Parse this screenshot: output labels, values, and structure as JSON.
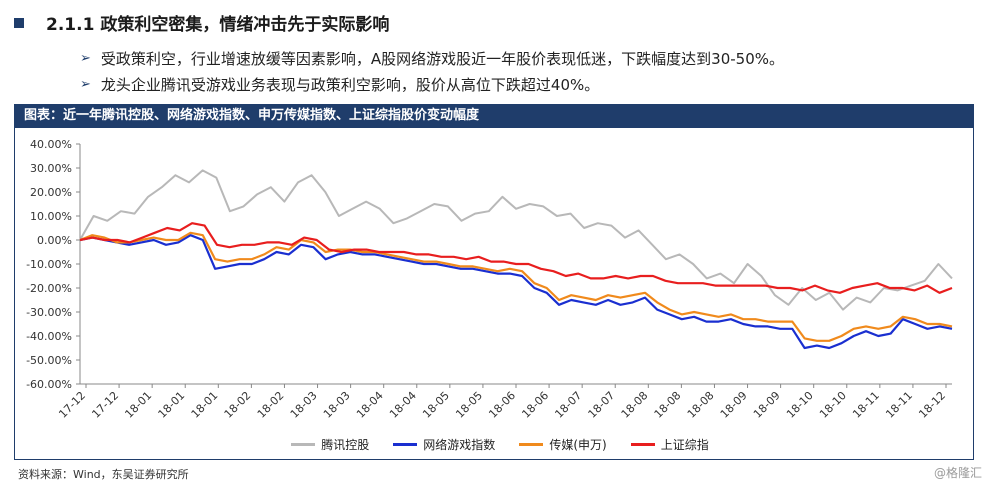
{
  "header": {
    "title": "2.1.1 政策利空密集，情绪冲击先于实际影响",
    "bullets": [
      "受政策利空，行业增速放缓等因素影响，A股网络游戏股近一年股价表现低迷，下跌幅度达到30-50%。",
      "龙头企业腾讯受游戏业务表现与政策利空影响，股价从高位下跌超过40%。"
    ]
  },
  "figure": {
    "caption": "图表：近一年腾讯控股、网络游戏指数、申万传媒指数、上证综指股价变动幅度",
    "source": "资料来源：Wind，东吴证券研究所",
    "watermark": "@格隆汇"
  },
  "colors": {
    "accent": "#1f3d6b"
  },
  "chart_data": {
    "type": "line",
    "title": "",
    "xlabel": "",
    "ylabel": "",
    "ylim": [
      -60,
      40
    ],
    "y_ticks": [
      "40.00%",
      "30.00%",
      "20.00%",
      "10.00%",
      "0.00%",
      "-10.00%",
      "-20.00%",
      "-30.00%",
      "-40.00%",
      "-50.00%",
      "-60.00%"
    ],
    "x_ticks": [
      "17-12",
      "17-12",
      "18-01",
      "18-01",
      "18-01",
      "18-02",
      "18-02",
      "18-03",
      "18-03",
      "18-04",
      "18-04",
      "18-05",
      "18-05",
      "18-06",
      "18-06",
      "18-07",
      "18-07",
      "18-08",
      "18-08",
      "18-08",
      "18-09",
      "18-09",
      "18-10",
      "18-10",
      "18-11",
      "18-11",
      "18-12"
    ],
    "legend_position": "bottom",
    "grid": false,
    "series": [
      {
        "name": "腾讯控股",
        "color": "#b8b8b8",
        "values": [
          0,
          10,
          8,
          12,
          11,
          18,
          22,
          27,
          24,
          29,
          26,
          12,
          14,
          19,
          22,
          16,
          24,
          27,
          20,
          10,
          13,
          16,
          13,
          7,
          9,
          12,
          15,
          14,
          8,
          11,
          12,
          18,
          13,
          15,
          14,
          10,
          11,
          5,
          7,
          6,
          1,
          4,
          -2,
          -8,
          -6,
          -10,
          -16,
          -14,
          -18,
          -10,
          -15,
          -23,
          -27,
          -20,
          -25,
          -22,
          -29,
          -24,
          -26,
          -20,
          -21,
          -19,
          -17,
          -10,
          -16
        ]
      },
      {
        "name": "网络游戏指数",
        "color": "#1a2fd0",
        "values": [
          0,
          1,
          0,
          -1,
          -2,
          -1,
          0,
          -2,
          -1,
          2,
          0,
          -12,
          -11,
          -10,
          -10,
          -8,
          -5,
          -6,
          -2,
          -3,
          -8,
          -6,
          -5,
          -6,
          -6,
          -7,
          -8,
          -9,
          -10,
          -10,
          -11,
          -12,
          -12,
          -13,
          -14,
          -14,
          -15,
          -20,
          -22,
          -27,
          -25,
          -26,
          -27,
          -25,
          -27,
          -26,
          -24,
          -29,
          -31,
          -33,
          -32,
          -34,
          -34,
          -33,
          -35,
          -36,
          -36,
          -37,
          -37,
          -45,
          -44,
          -45,
          -43,
          -40,
          -38,
          -40,
          -39,
          -33,
          -35,
          -37,
          -36,
          -37
        ]
      },
      {
        "name": "传媒(申万)",
        "color": "#f08a1c",
        "values": [
          0,
          2,
          1,
          -1,
          -1,
          0,
          1,
          0,
          0,
          3,
          2,
          -8,
          -9,
          -8,
          -8,
          -6,
          -3,
          -4,
          0,
          -1,
          -5,
          -4,
          -4,
          -5,
          -5,
          -6,
          -7,
          -8,
          -9,
          -9,
          -10,
          -11,
          -11,
          -12,
          -13,
          -12,
          -13,
          -18,
          -20,
          -25,
          -23,
          -24,
          -25,
          -23,
          -24,
          -23,
          -22,
          -26,
          -29,
          -31,
          -30,
          -31,
          -32,
          -31,
          -33,
          -33,
          -34,
          -34,
          -34,
          -41,
          -42,
          -42,
          -40,
          -37,
          -36,
          -37,
          -36,
          -32,
          -33,
          -35,
          -35,
          -36
        ]
      },
      {
        "name": "上证综指",
        "color": "#e81e1e",
        "values": [
          0,
          1,
          0,
          0,
          -1,
          1,
          3,
          5,
          4,
          7,
          6,
          -2,
          -3,
          -2,
          -2,
          -1,
          -1,
          -2,
          1,
          0,
          -4,
          -5,
          -4,
          -4,
          -5,
          -5,
          -5,
          -6,
          -6,
          -7,
          -7,
          -8,
          -7,
          -9,
          -9,
          -10,
          -10,
          -12,
          -13,
          -15,
          -14,
          -16,
          -16,
          -15,
          -16,
          -15,
          -15,
          -17,
          -18,
          -18,
          -18,
          -19,
          -19,
          -19,
          -19,
          -19,
          -20,
          -20,
          -21,
          -19,
          -21,
          -22,
          -20,
          -19,
          -18,
          -20,
          -20,
          -21,
          -19,
          -22,
          -20
        ]
      }
    ]
  }
}
